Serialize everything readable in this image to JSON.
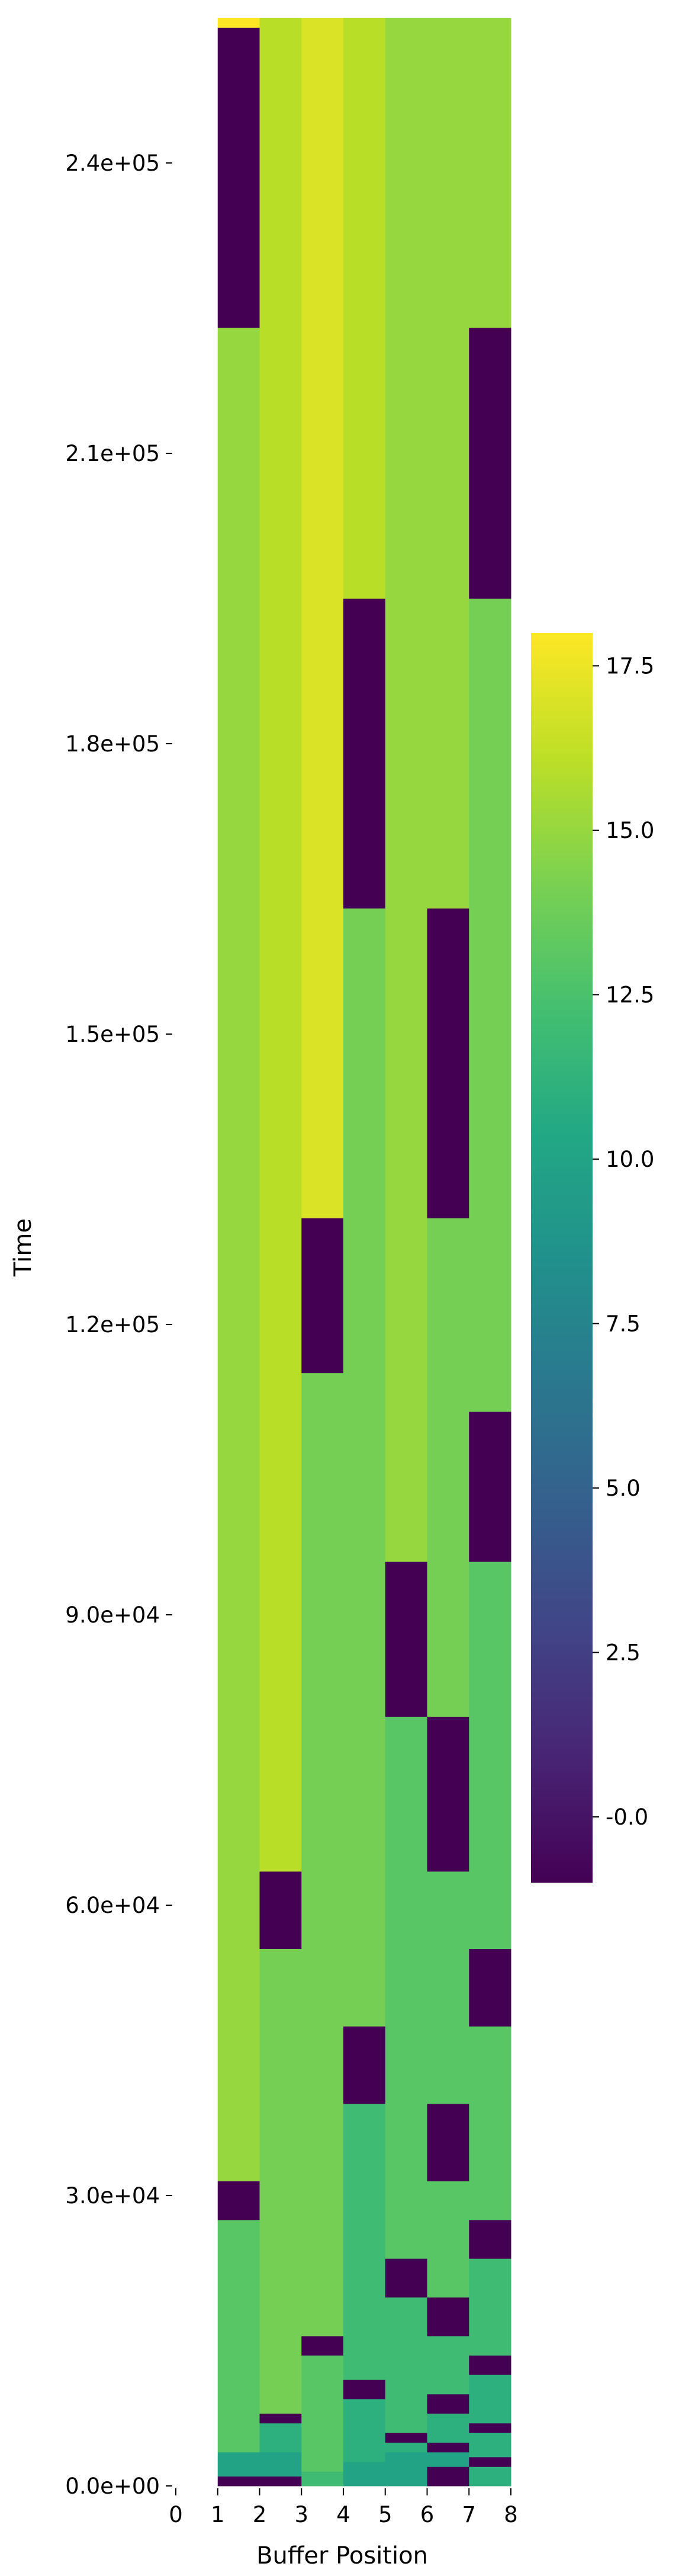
{
  "chart_data": {
    "type": "heatmap",
    "title": "",
    "xlabel": "Buffer Position",
    "ylabel": "Time",
    "x_ticks": [
      "0",
      "1",
      "2",
      "3",
      "4",
      "5",
      "6",
      "7",
      "8"
    ],
    "x_tick_values": [
      0,
      1,
      2,
      3,
      4,
      5,
      6,
      7,
      8
    ],
    "y_ticks": [
      "0.0e+00",
      "3.0e+04",
      "6.0e+04",
      "9.0e+04",
      "1.2e+05",
      "1.5e+05",
      "1.8e+05",
      "2.1e+05",
      "2.4e+05"
    ],
    "y_tick_values": [
      0,
      30000,
      60000,
      90000,
      120000,
      150000,
      180000,
      210000,
      240000
    ],
    "xlim": [
      0,
      8
    ],
    "ylim": [
      0,
      255000
    ],
    "colormap": "viridis",
    "colorbar": {
      "vmin": -1.0,
      "vmax": 18.0,
      "ticks": [
        "-0.0",
        "2.5",
        "5.0",
        "7.5",
        "10.0",
        "12.5",
        "15.0",
        "17.5"
      ],
      "tick_values": [
        0,
        2.5,
        5,
        7.5,
        10,
        12.5,
        15,
        17.5
      ]
    },
    "columns": [
      {
        "position": 1,
        "segments": [
          {
            "t0": 0,
            "t1": 1000,
            "value": -1
          },
          {
            "t0": 1000,
            "t1": 3500,
            "value": 10
          },
          {
            "t0": 3500,
            "t1": 27500,
            "value": 13
          },
          {
            "t0": 27500,
            "t1": 31500,
            "value": -1
          },
          {
            "t0": 31500,
            "t1": 223000,
            "value": 15
          },
          {
            "t0": 223000,
            "t1": 254000,
            "value": -1
          },
          {
            "t0": 254000,
            "t1": 255000,
            "value": 18
          }
        ]
      },
      {
        "position": 2,
        "segments": [
          {
            "t0": 0,
            "t1": 1000,
            "value": -1
          },
          {
            "t0": 1000,
            "t1": 3500,
            "value": 10
          },
          {
            "t0": 3500,
            "t1": 6500,
            "value": 11
          },
          {
            "t0": 6500,
            "t1": 7500,
            "value": -1
          },
          {
            "t0": 7500,
            "t1": 55500,
            "value": 14
          },
          {
            "t0": 55500,
            "t1": 63500,
            "value": -1
          },
          {
            "t0": 63500,
            "t1": 255000,
            "value": 16
          }
        ]
      },
      {
        "position": 3,
        "segments": [
          {
            "t0": 0,
            "t1": 1500,
            "value": 12
          },
          {
            "t0": 1500,
            "t1": 13500,
            "value": 13
          },
          {
            "t0": 13500,
            "t1": 15500,
            "value": -1
          },
          {
            "t0": 15500,
            "t1": 115000,
            "value": 14
          },
          {
            "t0": 115000,
            "t1": 131000,
            "value": -1
          },
          {
            "t0": 131000,
            "t1": 255000,
            "value": 17
          }
        ]
      },
      {
        "position": 4,
        "segments": [
          {
            "t0": 0,
            "t1": 2500,
            "value": 10
          },
          {
            "t0": 2500,
            "t1": 9000,
            "value": 11
          },
          {
            "t0": 9000,
            "t1": 11000,
            "value": -1
          },
          {
            "t0": 11000,
            "t1": 39500,
            "value": 12
          },
          {
            "t0": 39500,
            "t1": 47500,
            "value": -1
          },
          {
            "t0": 47500,
            "t1": 163000,
            "value": 14
          },
          {
            "t0": 163000,
            "t1": 195000,
            "value": -1
          },
          {
            "t0": 195000,
            "t1": 255000,
            "value": 16
          }
        ]
      },
      {
        "position": 5,
        "segments": [
          {
            "t0": 0,
            "t1": 3500,
            "value": 10
          },
          {
            "t0": 3500,
            "t1": 4500,
            "value": 11
          },
          {
            "t0": 4500,
            "t1": 5500,
            "value": -1
          },
          {
            "t0": 5500,
            "t1": 19500,
            "value": 12
          },
          {
            "t0": 19500,
            "t1": 23500,
            "value": -1
          },
          {
            "t0": 23500,
            "t1": 79500,
            "value": 13
          },
          {
            "t0": 79500,
            "t1": 95500,
            "value": -1
          },
          {
            "t0": 95500,
            "t1": 163000,
            "value": 15
          },
          {
            "t0": 163000,
            "t1": 255000,
            "value": 15
          }
        ]
      },
      {
        "position": 6,
        "segments": [
          {
            "t0": 0,
            "t1": 2000,
            "value": -1
          },
          {
            "t0": 2000,
            "t1": 3500,
            "value": 10
          },
          {
            "t0": 3500,
            "t1": 4500,
            "value": -1
          },
          {
            "t0": 4500,
            "t1": 7500,
            "value": 11
          },
          {
            "t0": 7500,
            "t1": 9500,
            "value": -1
          },
          {
            "t0": 9500,
            "t1": 15500,
            "value": 12
          },
          {
            "t0": 15500,
            "t1": 19500,
            "value": -1
          },
          {
            "t0": 19500,
            "t1": 31500,
            "value": 13
          },
          {
            "t0": 31500,
            "t1": 39500,
            "value": -1
          },
          {
            "t0": 39500,
            "t1": 63500,
            "value": 13
          },
          {
            "t0": 63500,
            "t1": 79500,
            "value": -1
          },
          {
            "t0": 79500,
            "t1": 131000,
            "value": 14
          },
          {
            "t0": 131000,
            "t1": 163000,
            "value": -1
          },
          {
            "t0": 163000,
            "t1": 255000,
            "value": 15
          }
        ]
      },
      {
        "position": 7,
        "segments": [
          {
            "t0": 0,
            "t1": 2000,
            "value": 11
          },
          {
            "t0": 2000,
            "t1": 3000,
            "value": -1
          },
          {
            "t0": 3000,
            "t1": 5500,
            "value": 11
          },
          {
            "t0": 5500,
            "t1": 6500,
            "value": -1
          },
          {
            "t0": 6500,
            "t1": 11500,
            "value": 11
          },
          {
            "t0": 11500,
            "t1": 13500,
            "value": -1
          },
          {
            "t0": 13500,
            "t1": 23500,
            "value": 12
          },
          {
            "t0": 23500,
            "t1": 27500,
            "value": -1
          },
          {
            "t0": 27500,
            "t1": 47500,
            "value": 13
          },
          {
            "t0": 47500,
            "t1": 55500,
            "value": -1
          },
          {
            "t0": 55500,
            "t1": 95500,
            "value": 13
          },
          {
            "t0": 95500,
            "t1": 111000,
            "value": -1
          },
          {
            "t0": 111000,
            "t1": 195000,
            "value": 14
          },
          {
            "t0": 195000,
            "t1": 223000,
            "value": -1
          },
          {
            "t0": 223000,
            "t1": 255000,
            "value": 15
          }
        ]
      }
    ]
  }
}
